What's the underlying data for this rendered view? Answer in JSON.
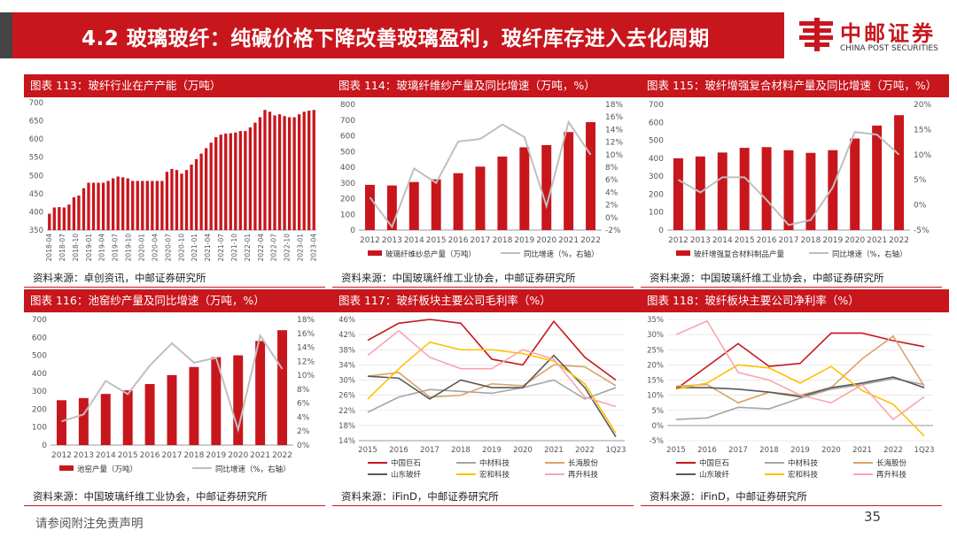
{
  "header": {
    "title": "4.2 玻璃玻纤：纯碱价格下降改善玻璃盈利，玻纤库存进入去化周期"
  },
  "logo": {
    "cn": "中邮证券",
    "en": "CHINA POST SECURITIES"
  },
  "footer": {
    "disclaimer": "请参阅附注免责声明",
    "page": "35"
  },
  "colors": {
    "red": "#c8161d",
    "gray": "#bfbfbf",
    "orange": "#ffc000",
    "tan": "#d9a36a",
    "dark": "#595959",
    "pink": "#f7a6b0",
    "mid": "#a6a6a6"
  },
  "panels": [
    {
      "title": "图表 113：玻纤行业在产产能（万吨）",
      "source": "资料来源：卓创资讯，中邮证券研究所"
    },
    {
      "title": "图表 114：玻璃纤维纱产量及同比增速（万吨，%）",
      "source": "资料来源：中国玻璃纤维工业协会，中邮证券研究所"
    },
    {
      "title": "图表 115：玻纤增强复合材料产量及同比增速（万吨，%）",
      "source": "资料来源：中国玻璃纤维工业协会，中邮证券研究所"
    },
    {
      "title": "图表 116：池窑纱产量及同比增速（万吨，%）",
      "source": "资料来源：中国玻璃纤维工业协会，中邮证券研究所"
    },
    {
      "title": "图表 117：玻纤板块主要公司毛利率（%）",
      "source": "资料来源：iFinD，中邮证券研究所"
    },
    {
      "title": "图表 118：玻纤板块主要公司净利率（%）",
      "source": "资料来源：iFinD，中邮证券研究所"
    }
  ],
  "chart_data": [
    {
      "type": "bar",
      "ylim": [
        350,
        700
      ],
      "yticks": [
        "350",
        "400",
        "450",
        "500",
        "550",
        "600",
        "650",
        "700"
      ],
      "xticks": [
        "2018-04",
        "2018-07",
        "2018-10",
        "2019-01",
        "2019-04",
        "2019-07",
        "2019-10",
        "2020-01",
        "2020-04",
        "2020-07",
        "2020-10",
        "2021-01",
        "2021-04",
        "2021-07",
        "2021-10",
        "2022-01",
        "2022-04",
        "2022-07",
        "2022-10",
        "2023-01",
        "2023-04"
      ],
      "values": [
        395,
        412,
        413,
        412,
        420,
        440,
        445,
        465,
        480,
        480,
        480,
        480,
        485,
        492,
        497,
        495,
        492,
        485,
        485,
        485,
        485,
        485,
        485,
        485,
        510,
        518,
        515,
        505,
        515,
        530,
        545,
        560,
        575,
        590,
        605,
        612,
        615,
        616,
        618,
        622,
        622,
        632,
        645,
        660,
        680,
        675,
        665,
        668,
        663,
        660,
        660,
        668,
        675,
        678,
        680
      ]
    },
    {
      "type": "bar+line",
      "categories": [
        "2012",
        "2013",
        "2014",
        "2015",
        "2016",
        "2017",
        "2018",
        "2019",
        "2020",
        "2021",
        "2022"
      ],
      "ylim": [
        0,
        800
      ],
      "y2lim": [
        -2,
        18
      ],
      "yticks": [
        "0",
        "100",
        "200",
        "300",
        "400",
        "500",
        "600",
        "700",
        "800"
      ],
      "y2ticks": [
        "-2%",
        "0%",
        "2%",
        "4%",
        "6%",
        "8%",
        "10%",
        "12%",
        "14%",
        "16%",
        "18%"
      ],
      "series": [
        {
          "name": "玻璃纤维纱总产量（万吨）",
          "values": [
            288,
            284,
            306,
            323,
            362,
            404,
            468,
            527,
            541,
            624,
            687
          ]
        },
        {
          "name": "同比增速（%，右轴）",
          "values": [
            3.2,
            -1.5,
            7.8,
            5.5,
            12.1,
            12.5,
            14.8,
            12.8,
            1.8,
            15.2,
            10.0
          ]
        }
      ]
    },
    {
      "type": "bar+line",
      "categories": [
        "2012",
        "2013",
        "2014",
        "2015",
        "2016",
        "2017",
        "2018",
        "2019",
        "2020",
        "2021",
        "2022"
      ],
      "ylim": [
        0,
        700
      ],
      "y2lim": [
        -5,
        20
      ],
      "yticks": [
        "0",
        "100",
        "200",
        "300",
        "400",
        "500",
        "600",
        "700"
      ],
      "y2ticks": [
        "-5%",
        "0%",
        "5%",
        "10%",
        "15%",
        "20%"
      ],
      "series": [
        {
          "name": "玻纤增强复合材料制品产量",
          "values": [
            400,
            410,
            432,
            458,
            462,
            445,
            430,
            445,
            510,
            582,
            640
          ]
        },
        {
          "name": "同比增速（%，右轴）",
          "values": [
            5.0,
            2.5,
            5.5,
            5.5,
            1.0,
            -4.0,
            -3.0,
            3.5,
            14.5,
            14.0,
            10.0
          ]
        }
      ]
    },
    {
      "type": "bar+line",
      "categories": [
        "2012",
        "2013",
        "2014",
        "2015",
        "2016",
        "2017",
        "2018",
        "2019",
        "2020",
        "2021",
        "2022"
      ],
      "ylim": [
        0,
        700
      ],
      "y2lim": [
        0,
        18
      ],
      "yticks": [
        "0",
        "100",
        "200",
        "300",
        "400",
        "500",
        "600",
        "700"
      ],
      "y2ticks": [
        "0%",
        "2%",
        "4%",
        "6%",
        "8%",
        "10%",
        "12%",
        "14%",
        "16%",
        "18%"
      ],
      "series": [
        {
          "name": "池窑产量（万吨）",
          "values": [
            250,
            262,
            285,
            305,
            340,
            390,
            435,
            490,
            500,
            580,
            640
          ]
        },
        {
          "name": "同比增速（%，右轴）",
          "values": [
            3.4,
            4.4,
            9.2,
            7.3,
            11.4,
            14.6,
            11.8,
            12.5,
            2.2,
            15.7,
            10.9
          ]
        }
      ]
    },
    {
      "type": "line",
      "categories": [
        "2015",
        "2016",
        "2017",
        "2018",
        "2019",
        "2020",
        "2021",
        "2022",
        "1Q23"
      ],
      "ylim": [
        14,
        46
      ],
      "yticks": [
        "14%",
        "18%",
        "22%",
        "26%",
        "30%",
        "34%",
        "38%",
        "42%",
        "46%"
      ],
      "series": [
        {
          "name": "中国巨石",
          "values": [
            40.5,
            45.0,
            46.0,
            45.0,
            35.5,
            34.0,
            45.5,
            36.0,
            30.0
          ]
        },
        {
          "name": "中材科技",
          "values": [
            21.5,
            25.5,
            27.5,
            27.0,
            26.5,
            28.0,
            30.0,
            25.0,
            28.0
          ]
        },
        {
          "name": "长海股份",
          "values": [
            31.0,
            32.0,
            25.5,
            26.0,
            29.0,
            28.5,
            34.0,
            33.5,
            28.5
          ]
        },
        {
          "name": "山东玻纤",
          "values": [
            31.0,
            30.5,
            25.0,
            30.0,
            28.0,
            28.0,
            36.5,
            28.0,
            15.0
          ]
        },
        {
          "name": "宏和科技",
          "values": [
            25.0,
            33.0,
            40.0,
            38.0,
            38.0,
            37.0,
            35.0,
            29.0,
            16.0
          ]
        },
        {
          "name": "再升科技",
          "values": [
            36.5,
            43.0,
            36.0,
            33.0,
            33.0,
            38.0,
            35.5,
            25.5,
            23.0
          ]
        }
      ]
    },
    {
      "type": "line",
      "categories": [
        "2015",
        "2016",
        "2017",
        "2018",
        "2019",
        "2020",
        "2021",
        "2022",
        "1Q23"
      ],
      "ylim": [
        -5,
        35
      ],
      "yticks": [
        "-5%",
        "0%",
        "5%",
        "10%",
        "15%",
        "20%",
        "25%",
        "30%",
        "35%"
      ],
      "series": [
        {
          "name": "中国巨石",
          "values": [
            12.0,
            19.5,
            27.0,
            19.5,
            20.5,
            30.5,
            30.5,
            28.0,
            26.0
          ]
        },
        {
          "name": "中材科技",
          "values": [
            2.0,
            2.5,
            6.0,
            5.5,
            9.0,
            12.0,
            13.5,
            15.5,
            13.5
          ]
        },
        {
          "name": "长海股份",
          "values": [
            13.0,
            13.5,
            7.5,
            11.0,
            10.0,
            12.5,
            22.0,
            29.5,
            13.0
          ]
        },
        {
          "name": "山东玻纤",
          "values": [
            12.5,
            12.5,
            12.0,
            11.0,
            9.5,
            12.5,
            14.0,
            16.0,
            12.5
          ]
        },
        {
          "name": "宏和科技",
          "values": [
            12.0,
            14.0,
            20.0,
            19.0,
            14.0,
            19.5,
            11.5,
            7.0,
            -3.5
          ]
        },
        {
          "name": "再升科技",
          "values": [
            30.0,
            34.5,
            17.5,
            15.0,
            10.0,
            7.5,
            13.5,
            2.0,
            9.5
          ]
        }
      ]
    }
  ]
}
